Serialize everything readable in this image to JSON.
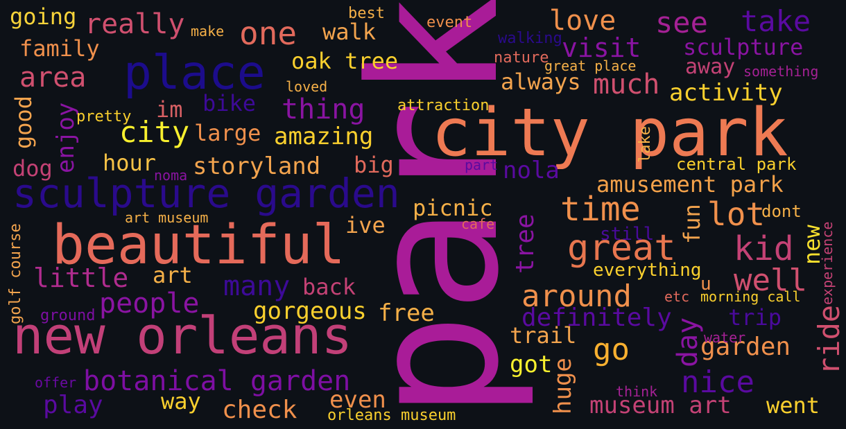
{
  "words": [
    {
      "text": "park",
      "color": "#a91c98"
    },
    {
      "text": "city park",
      "color": "#ee7a53"
    },
    {
      "text": "new orleans",
      "color": "#c24078"
    },
    {
      "text": "beautiful",
      "color": "#e56a5a"
    },
    {
      "text": "sculpture garden",
      "color": "#2a0a8c"
    },
    {
      "text": "place",
      "color": "#1c0c8c"
    },
    {
      "text": "botanical garden",
      "color": "#7e0fa3"
    },
    {
      "text": "amusement park",
      "color": "#f4a24a"
    },
    {
      "text": "time",
      "color": "#f0904c"
    },
    {
      "text": "great",
      "color": "#e8764f"
    },
    {
      "text": "one",
      "color": "#e26a5c"
    },
    {
      "text": "see",
      "color": "#a52195"
    },
    {
      "text": "take",
      "color": "#5a0aa0"
    },
    {
      "text": "love",
      "color": "#f0904c"
    },
    {
      "text": "visit",
      "color": "#8a14a2"
    },
    {
      "text": "really",
      "color": "#d0506f"
    },
    {
      "text": "going",
      "color": "#f7d33a"
    },
    {
      "text": "family",
      "color": "#f0904c"
    },
    {
      "text": "area",
      "color": "#d0506f"
    },
    {
      "text": "oak tree",
      "color": "#fad02e"
    },
    {
      "text": "walk",
      "color": "#f3a44e"
    },
    {
      "text": "much",
      "color": "#d0506f"
    },
    {
      "text": "always",
      "color": "#f3a44e"
    },
    {
      "text": "sculpture",
      "color": "#8a14a2"
    },
    {
      "text": "away",
      "color": "#c44275"
    },
    {
      "text": "activity",
      "color": "#fad02e"
    },
    {
      "text": "thing",
      "color": "#8a14a2"
    },
    {
      "text": "bike",
      "color": "#3d0a98"
    },
    {
      "text": "im",
      "color": "#d86064"
    },
    {
      "text": "good",
      "color": "#f3a44e"
    },
    {
      "text": "enjoy",
      "color": "#8a14a2"
    },
    {
      "text": "city",
      "color": "#f8f02e"
    },
    {
      "text": "large",
      "color": "#f0904c"
    },
    {
      "text": "amazing",
      "color": "#fad02e"
    },
    {
      "text": "hour",
      "color": "#f7c246"
    },
    {
      "text": "storyland",
      "color": "#f3a44e"
    },
    {
      "text": "big",
      "color": "#e26a5c"
    },
    {
      "text": "dog",
      "color": "#c44275"
    },
    {
      "text": "noma",
      "color": "#8a14a2"
    },
    {
      "text": "nola",
      "color": "#5a0aa0"
    },
    {
      "text": "central park",
      "color": "#fad02e"
    },
    {
      "text": "picnic",
      "color": "#f5b048"
    },
    {
      "text": "ive",
      "color": "#f3a44e"
    },
    {
      "text": "tree",
      "color": "#8a14a2"
    },
    {
      "text": "lot",
      "color": "#f0904c"
    },
    {
      "text": "fun",
      "color": "#f3a44e"
    },
    {
      "text": "dont",
      "color": "#f5b048"
    },
    {
      "text": "kid",
      "color": "#c44275"
    },
    {
      "text": "new",
      "color": "#f8e02e"
    },
    {
      "text": "well",
      "color": "#d0506f"
    },
    {
      "text": "little",
      "color": "#b02c8e"
    },
    {
      "text": "art",
      "color": "#f5b048"
    },
    {
      "text": "many",
      "color": "#3d0a98"
    },
    {
      "text": "back",
      "color": "#c44275"
    },
    {
      "text": "people",
      "color": "#8a14a2"
    },
    {
      "text": "gorgeous",
      "color": "#fad02e"
    },
    {
      "text": "free",
      "color": "#f5b048"
    },
    {
      "text": "around",
      "color": "#f0904c"
    },
    {
      "text": "definitely",
      "color": "#5a0aa0"
    },
    {
      "text": "day",
      "color": "#8a14a2"
    },
    {
      "text": "trip",
      "color": "#4a0a9c"
    },
    {
      "text": "ride",
      "color": "#d0506f"
    },
    {
      "text": "everything",
      "color": "#fad02e"
    },
    {
      "text": "u",
      "color": "#f0904c"
    },
    {
      "text": "experience",
      "color": "#c44275"
    },
    {
      "text": "golf course",
      "color": "#f3a44e"
    },
    {
      "text": "ground",
      "color": "#7e0fa3"
    },
    {
      "text": "trail",
      "color": "#f3a44e"
    },
    {
      "text": "go",
      "color": "#f8b030"
    },
    {
      "text": "got",
      "color": "#f8f02e"
    },
    {
      "text": "huge",
      "color": "#f0904c"
    },
    {
      "text": "garden",
      "color": "#f0904c"
    },
    {
      "text": "nice",
      "color": "#5a0aa0"
    },
    {
      "text": "museum art",
      "color": "#c44275"
    },
    {
      "text": "went",
      "color": "#fad02e"
    },
    {
      "text": "even",
      "color": "#f0904c"
    },
    {
      "text": "way",
      "color": "#fad02e"
    },
    {
      "text": "check",
      "color": "#f0904c"
    },
    {
      "text": "play",
      "color": "#5a0aa0"
    },
    {
      "text": "orleans museum",
      "color": "#fad02e"
    },
    {
      "text": "offer",
      "color": "#6a0aa2"
    },
    {
      "text": "think",
      "color": "#a52195"
    },
    {
      "text": "water",
      "color": "#a52195"
    },
    {
      "text": "etc",
      "color": "#e26a5c"
    },
    {
      "text": "morning call",
      "color": "#fad02e"
    },
    {
      "text": "still",
      "color": "#4a0a9c"
    },
    {
      "text": "cafe",
      "color": "#e26a5c"
    },
    {
      "text": "art museum",
      "color": "#f5b048"
    },
    {
      "text": "part",
      "color": "#5a0aa0"
    },
    {
      "text": "lake",
      "color": "#f5b048"
    },
    {
      "text": "attraction",
      "color": "#fad02e"
    },
    {
      "text": "pretty",
      "color": "#fad02e"
    },
    {
      "text": "loved",
      "color": "#f5b048"
    },
    {
      "text": "make",
      "color": "#f5b048"
    },
    {
      "text": "best",
      "color": "#f5b048"
    },
    {
      "text": "event",
      "color": "#f0904c"
    },
    {
      "text": "walking",
      "color": "#2a0a8c"
    },
    {
      "text": "nature",
      "color": "#e26a5c"
    },
    {
      "text": "great place",
      "color": "#f5b048"
    },
    {
      "text": "something",
      "color": "#a52195"
    }
  ]
}
